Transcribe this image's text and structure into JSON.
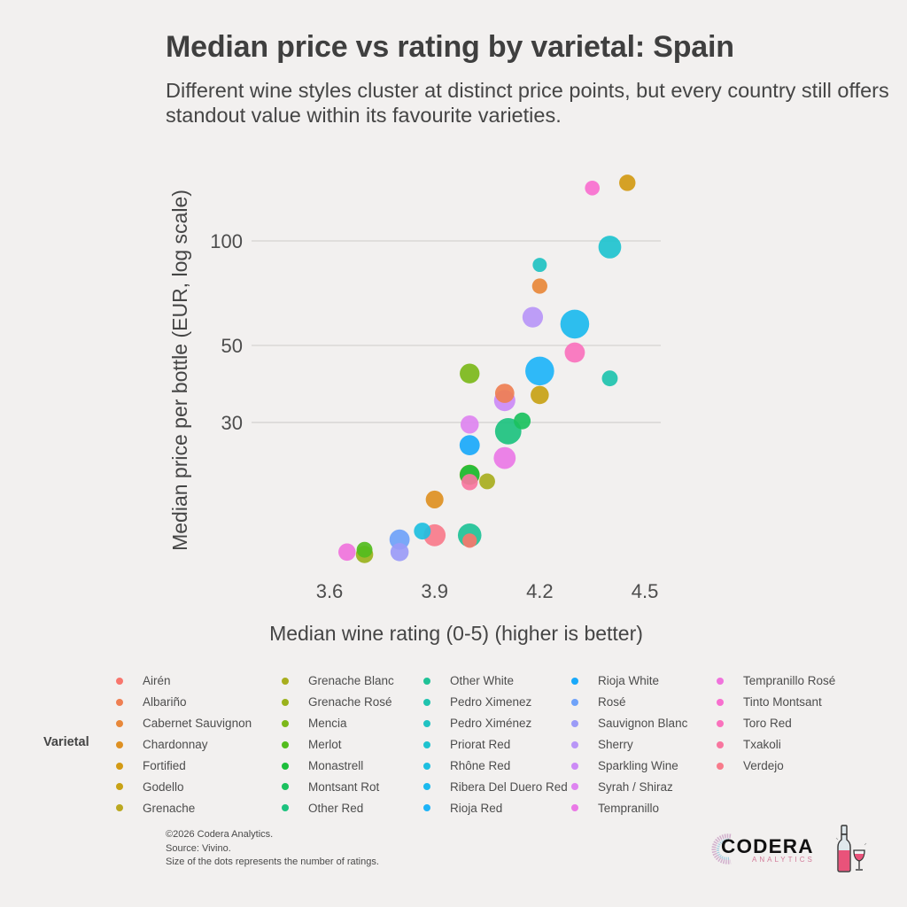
{
  "title": "Median price vs rating by varietal: Spain",
  "subtitle": "Different wine styles cluster at distinct price points, but every country still offers standout value within its favourite varieties.",
  "footer": {
    "copyright": "©2026 Codera Analytics.",
    "source": "Source: Vivino.",
    "note": "Size of the dots represents the number of ratings."
  },
  "logo": {
    "name": "CODERA",
    "sub": "ANALYTICS"
  },
  "legend": {
    "title": "Varietal"
  },
  "chart_data": {
    "type": "scatter",
    "title": "Median price vs rating by varietal: Spain",
    "xlabel": "Median wine rating (0-5) (higher is better)",
    "ylabel": "Median price per bottle (EUR, log scale)",
    "xlim": [
      3.54,
      4.55
    ],
    "ylim": [
      12.0,
      160
    ],
    "y_scale": "log",
    "x_ticks": [
      3.6,
      3.9,
      4.2,
      4.5
    ],
    "x_tick_labels": [
      "3.6",
      "3.9",
      "4.2",
      "4.5"
    ],
    "y_ticks": [
      30,
      50,
      100
    ],
    "y_tick_labels": [
      "30",
      "50",
      "100"
    ],
    "grid": "horizontal major",
    "legend_position": "bottom",
    "size_encodes": "number of ratings (relative, 1-10)",
    "series": [
      {
        "name": "Airén",
        "color": "#F8766D",
        "x": 4.0,
        "y": 13.7,
        "size": 1.5
      },
      {
        "name": "Albariño",
        "color": "#EF7F52",
        "x": 4.1,
        "y": 36.4,
        "size": 3.5
      },
      {
        "name": "Cabernet Sauvignon",
        "color": "#E8883A",
        "x": 4.2,
        "y": 74.1,
        "size": 1.8
      },
      {
        "name": "Chardonnay",
        "color": "#DE9022",
        "x": 3.9,
        "y": 18.0,
        "size": 2.8
      },
      {
        "name": "Fortified",
        "color": "#D39A14",
        "x": 4.45,
        "y": 147,
        "size": 2.2
      },
      {
        "name": "Godello",
        "color": "#C8A215",
        "x": 4.2,
        "y": 36.0,
        "size": 3.0
      },
      {
        "name": "Grenache",
        "color": "#BBA820",
        "x": 4.0,
        "y": 21.2,
        "size": 4.0
      },
      {
        "name": "Grenache Blanc",
        "color": "#A8AE1E",
        "x": 4.05,
        "y": 20.3,
        "size": 2.0
      },
      {
        "name": "Grenache Rosé",
        "color": "#9AB21C",
        "x": 3.7,
        "y": 12.5,
        "size": 2.6
      },
      {
        "name": "Mencia",
        "color": "#7CB81A",
        "x": 4.0,
        "y": 41.5,
        "size": 3.8
      },
      {
        "name": "Merlot",
        "color": "#53BC1E",
        "x": 3.7,
        "y": 12.9,
        "size": 2.0
      },
      {
        "name": "Monastrell",
        "color": "#1DBE3B",
        "x": 4.0,
        "y": 21.2,
        "size": 3.8
      },
      {
        "name": "Montsant Rot",
        "color": "#1BC15E",
        "x": 4.15,
        "y": 30.3,
        "size": 2.4
      },
      {
        "name": "Other Red",
        "color": "#1DC27F",
        "x": 4.11,
        "y": 28.3,
        "size": 8.0
      },
      {
        "name": "Other White",
        "color": "#20C297",
        "x": 4.0,
        "y": 14.2,
        "size": 6.0
      },
      {
        "name": "Pedro Ximenez",
        "color": "#20C3AE",
        "x": 4.4,
        "y": 40.2,
        "size": 2.0
      },
      {
        "name": "Pedro Ximénez",
        "color": "#21C2C2",
        "x": 4.2,
        "y": 85.3,
        "size": 1.4
      },
      {
        "name": "Priorat Red",
        "color": "#1FC3CF",
        "x": 4.4,
        "y": 96,
        "size": 5.5
      },
      {
        "name": "Rhône Red",
        "color": "#1EBFE0",
        "x": 3.865,
        "y": 14.6,
        "size": 2.4
      },
      {
        "name": "Ribera Del Duero Red",
        "color": "#1CBAEE",
        "x": 4.3,
        "y": 57.6,
        "size": 10.0
      },
      {
        "name": "Rioja Red",
        "color": "#1EB4F8",
        "x": 4.2,
        "y": 42.2,
        "size": 10.0
      },
      {
        "name": "Rioja White",
        "color": "#1AA9FA",
        "x": 4.0,
        "y": 25.8,
        "size": 4.0
      },
      {
        "name": "Rosé",
        "color": "#6FA2F9",
        "x": 3.8,
        "y": 13.8,
        "size": 4.0
      },
      {
        "name": "Sauvignon Blanc",
        "color": "#9B9BF7",
        "x": 3.8,
        "y": 12.7,
        "size": 3.0
      },
      {
        "name": "Sherry",
        "color": "#B996F7",
        "x": 4.18,
        "y": 60.3,
        "size": 4.2
      },
      {
        "name": "Sparkling Wine",
        "color": "#CC8AF6",
        "x": 4.1,
        "y": 34.7,
        "size": 4.6
      },
      {
        "name": "Syrah / Shiraz",
        "color": "#DE84F0",
        "x": 4.0,
        "y": 29.6,
        "size": 3.0
      },
      {
        "name": "Tempranillo",
        "color": "#EA78E6",
        "x": 4.1,
        "y": 23.7,
        "size": 5.0
      },
      {
        "name": "Tempranillo Rosé",
        "color": "#F073DC",
        "x": 3.65,
        "y": 12.7,
        "size": 2.6
      },
      {
        "name": "Tinto Montsant",
        "color": "#F86FCF",
        "x": 4.35,
        "y": 142,
        "size": 1.6
      },
      {
        "name": "Toro Red",
        "color": "#FA72BD",
        "x": 4.3,
        "y": 47.7,
        "size": 4.0
      },
      {
        "name": "Txakoli",
        "color": "#F8769F",
        "x": 4.0,
        "y": 20.2,
        "size": 2.2
      },
      {
        "name": "Verdejo",
        "color": "#F87B8B",
        "x": 3.9,
        "y": 14.2,
        "size": 5.0
      }
    ]
  }
}
